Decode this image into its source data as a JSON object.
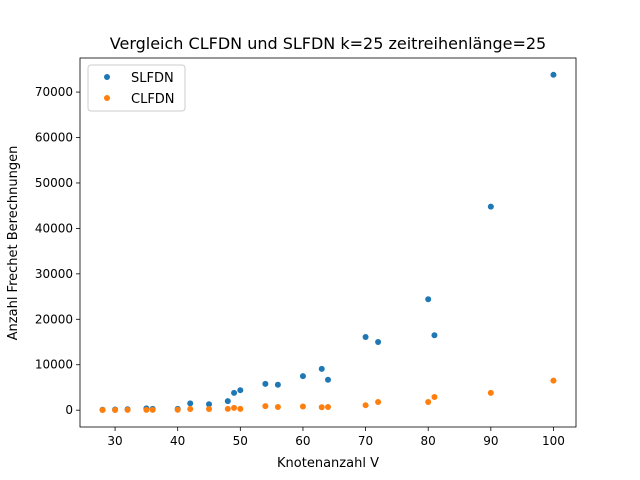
{
  "chart_data": {
    "type": "scatter",
    "title": "Vergleich CLFDN und SLFDN k=25 zeitreihenlänge=25",
    "xlabel": "Knotenanzahl V",
    "ylabel": "Anzahl Frechet Berechnungen",
    "xlim": [
      24.4,
      103.6
    ],
    "ylim": [
      -3700,
      77500
    ],
    "xticks": [
      30,
      40,
      50,
      60,
      70,
      80,
      90,
      100
    ],
    "yticks": [
      0,
      10000,
      20000,
      30000,
      40000,
      50000,
      60000,
      70000
    ],
    "grid": false,
    "legend_position": "top-left",
    "series": [
      {
        "name": "SLFDN",
        "color": "#1f77b4",
        "points": [
          [
            28,
            100
          ],
          [
            30,
            150
          ],
          [
            32,
            200
          ],
          [
            35,
            400
          ],
          [
            36,
            300
          ],
          [
            40,
            300
          ],
          [
            42,
            1500
          ],
          [
            45,
            1300
          ],
          [
            48,
            2000
          ],
          [
            49,
            3800
          ],
          [
            50,
            4400
          ],
          [
            54,
            5800
          ],
          [
            56,
            5600
          ],
          [
            60,
            7500
          ],
          [
            63,
            9100
          ],
          [
            64,
            6700
          ],
          [
            70,
            16100
          ],
          [
            72,
            15000
          ],
          [
            80,
            24400
          ],
          [
            81,
            16500
          ],
          [
            90,
            44800
          ],
          [
            100,
            73800
          ]
        ]
      },
      {
        "name": "CLFDN",
        "color": "#ff7f0e",
        "points": [
          [
            28,
            50
          ],
          [
            30,
            50
          ],
          [
            32,
            60
          ],
          [
            35,
            80
          ],
          [
            36,
            80
          ],
          [
            40,
            100
          ],
          [
            42,
            250
          ],
          [
            45,
            250
          ],
          [
            48,
            300
          ],
          [
            49,
            500
          ],
          [
            50,
            300
          ],
          [
            54,
            900
          ],
          [
            56,
            700
          ],
          [
            60,
            800
          ],
          [
            63,
            650
          ],
          [
            64,
            700
          ],
          [
            70,
            1100
          ],
          [
            72,
            1800
          ],
          [
            80,
            1800
          ],
          [
            81,
            2900
          ],
          [
            90,
            3800
          ],
          [
            100,
            6500
          ]
        ]
      }
    ]
  }
}
